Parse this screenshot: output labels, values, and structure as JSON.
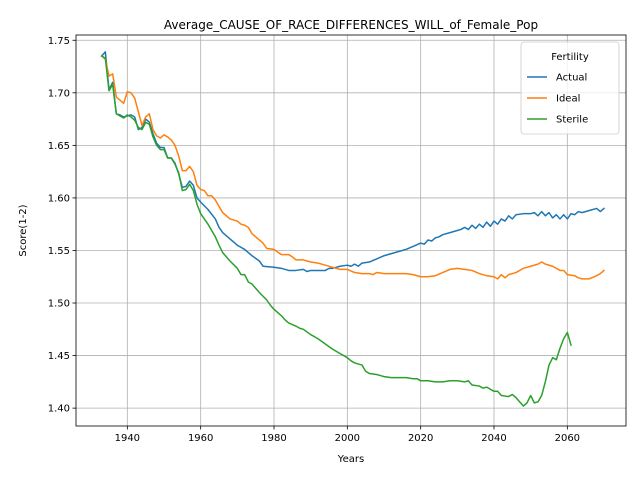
{
  "chart_data": {
    "type": "line",
    "title": "Average_CAUSE_OF_RACE_DIFFERENCES_WILL_of_Female_Pop",
    "xlabel": "Years",
    "ylabel": "Score(1-2)",
    "xlim": [
      1926,
      2076
    ],
    "ylim": [
      1.383,
      1.755
    ],
    "xticks": [
      1940,
      1960,
      1980,
      2000,
      2020,
      2040,
      2060
    ],
    "yticks": [
      1.4,
      1.45,
      1.5,
      1.55,
      1.6,
      1.65,
      1.7,
      1.75
    ],
    "xtick_labels": [
      "1940",
      "1960",
      "1980",
      "2000",
      "2020",
      "2040",
      "2060"
    ],
    "ytick_labels": [
      "1.40",
      "1.45",
      "1.50",
      "1.55",
      "1.60",
      "1.65",
      "1.70",
      "1.75"
    ],
    "grid": true,
    "legend": {
      "title": "Fertility",
      "placement": "upper right"
    },
    "series": [
      {
        "name": "Actual",
        "color": "#1f77b4",
        "points": [
          [
            1933,
            1.735
          ],
          [
            1934,
            1.739
          ],
          [
            1935,
            1.703
          ],
          [
            1936,
            1.71
          ],
          [
            1937,
            1.68
          ],
          [
            1938,
            1.679
          ],
          [
            1939,
            1.677
          ],
          [
            1940,
            1.678
          ],
          [
            1941,
            1.679
          ],
          [
            1942,
            1.677
          ],
          [
            1943,
            1.665
          ],
          [
            1944,
            1.667
          ],
          [
            1945,
            1.675
          ],
          [
            1946,
            1.672
          ],
          [
            1947,
            1.661
          ],
          [
            1948,
            1.652
          ],
          [
            1949,
            1.648
          ],
          [
            1950,
            1.648
          ],
          [
            1951,
            1.638
          ],
          [
            1952,
            1.638
          ],
          [
            1953,
            1.633
          ],
          [
            1954,
            1.623
          ],
          [
            1955,
            1.61
          ],
          [
            1956,
            1.611
          ],
          [
            1957,
            1.616
          ],
          [
            1958,
            1.612
          ],
          [
            1959,
            1.6
          ],
          [
            1960,
            1.596
          ],
          [
            1962,
            1.589
          ],
          [
            1964,
            1.58
          ],
          [
            1965,
            1.572
          ],
          [
            1966,
            1.567
          ],
          [
            1968,
            1.561
          ],
          [
            1970,
            1.555
          ],
          [
            1972,
            1.551
          ],
          [
            1974,
            1.545
          ],
          [
            1976,
            1.54
          ],
          [
            1977,
            1.535
          ],
          [
            1980,
            1.534
          ],
          [
            1982,
            1.533
          ],
          [
            1984,
            1.531
          ],
          [
            1986,
            1.531
          ],
          [
            1988,
            1.532
          ],
          [
            1989,
            1.53
          ],
          [
            1990,
            1.531
          ],
          [
            1992,
            1.531
          ],
          [
            1994,
            1.531
          ],
          [
            1995,
            1.533
          ],
          [
            1996,
            1.533
          ],
          [
            1998,
            1.535
          ],
          [
            2000,
            1.536
          ],
          [
            2001,
            1.535
          ],
          [
            2002,
            1.537
          ],
          [
            2003,
            1.535
          ],
          [
            2004,
            1.538
          ],
          [
            2006,
            1.539
          ],
          [
            2008,
            1.542
          ],
          [
            2010,
            1.545
          ],
          [
            2012,
            1.547
          ],
          [
            2014,
            1.549
          ],
          [
            2016,
            1.551
          ],
          [
            2018,
            1.554
          ],
          [
            2020,
            1.557
          ],
          [
            2021,
            1.556
          ],
          [
            2022,
            1.56
          ],
          [
            2023,
            1.559
          ],
          [
            2024,
            1.562
          ],
          [
            2025,
            1.563
          ],
          [
            2026,
            1.565
          ],
          [
            2028,
            1.567
          ],
          [
            2030,
            1.569
          ],
          [
            2031,
            1.57
          ],
          [
            2032,
            1.572
          ],
          [
            2033,
            1.57
          ],
          [
            2034,
            1.574
          ],
          [
            2035,
            1.571
          ],
          [
            2036,
            1.575
          ],
          [
            2037,
            1.572
          ],
          [
            2038,
            1.577
          ],
          [
            2039,
            1.573
          ],
          [
            2040,
            1.578
          ],
          [
            2041,
            1.575
          ],
          [
            2042,
            1.58
          ],
          [
            2043,
            1.578
          ],
          [
            2044,
            1.583
          ],
          [
            2045,
            1.58
          ],
          [
            2046,
            1.584
          ],
          [
            2048,
            1.585
          ],
          [
            2050,
            1.585
          ],
          [
            2051,
            1.586
          ],
          [
            2052,
            1.583
          ],
          [
            2053,
            1.587
          ],
          [
            2054,
            1.583
          ],
          [
            2055,
            1.586
          ],
          [
            2056,
            1.581
          ],
          [
            2057,
            1.584
          ],
          [
            2058,
            1.58
          ],
          [
            2059,
            1.584
          ],
          [
            2060,
            1.58
          ],
          [
            2061,
            1.585
          ],
          [
            2062,
            1.584
          ],
          [
            2063,
            1.587
          ],
          [
            2064,
            1.586
          ],
          [
            2066,
            1.588
          ],
          [
            2068,
            1.59
          ],
          [
            2069,
            1.587
          ],
          [
            2070,
            1.59
          ]
        ]
      },
      {
        "name": "Ideal",
        "color": "#ff7f0e",
        "points": [
          [
            1933,
            1.735
          ],
          [
            1934,
            1.732
          ],
          [
            1935,
            1.716
          ],
          [
            1936,
            1.718
          ],
          [
            1937,
            1.696
          ],
          [
            1938,
            1.693
          ],
          [
            1939,
            1.69
          ],
          [
            1940,
            1.701
          ],
          [
            1941,
            1.7
          ],
          [
            1942,
            1.695
          ],
          [
            1943,
            1.682
          ],
          [
            1944,
            1.669
          ],
          [
            1945,
            1.677
          ],
          [
            1946,
            1.68
          ],
          [
            1947,
            1.665
          ],
          [
            1948,
            1.659
          ],
          [
            1949,
            1.657
          ],
          [
            1950,
            1.66
          ],
          [
            1951,
            1.658
          ],
          [
            1952,
            1.655
          ],
          [
            1953,
            1.65
          ],
          [
            1954,
            1.64
          ],
          [
            1955,
            1.626
          ],
          [
            1956,
            1.626
          ],
          [
            1957,
            1.63
          ],
          [
            1958,
            1.625
          ],
          [
            1959,
            1.612
          ],
          [
            1960,
            1.608
          ],
          [
            1961,
            1.607
          ],
          [
            1962,
            1.602
          ],
          [
            1963,
            1.602
          ],
          [
            1964,
            1.598
          ],
          [
            1965,
            1.592
          ],
          [
            1966,
            1.586
          ],
          [
            1968,
            1.58
          ],
          [
            1970,
            1.578
          ],
          [
            1971,
            1.575
          ],
          [
            1972,
            1.574
          ],
          [
            1973,
            1.572
          ],
          [
            1974,
            1.566
          ],
          [
            1976,
            1.56
          ],
          [
            1977,
            1.557
          ],
          [
            1978,
            1.552
          ],
          [
            1980,
            1.551
          ],
          [
            1982,
            1.546
          ],
          [
            1984,
            1.546
          ],
          [
            1985,
            1.544
          ],
          [
            1986,
            1.541
          ],
          [
            1988,
            1.541
          ],
          [
            1990,
            1.539
          ],
          [
            1992,
            1.538
          ],
          [
            1994,
            1.536
          ],
          [
            1996,
            1.534
          ],
          [
            1998,
            1.532
          ],
          [
            2000,
            1.532
          ],
          [
            2002,
            1.529
          ],
          [
            2004,
            1.528
          ],
          [
            2006,
            1.528
          ],
          [
            2007,
            1.527
          ],
          [
            2008,
            1.529
          ],
          [
            2010,
            1.528
          ],
          [
            2012,
            1.528
          ],
          [
            2014,
            1.528
          ],
          [
            2016,
            1.528
          ],
          [
            2018,
            1.527
          ],
          [
            2020,
            1.525
          ],
          [
            2022,
            1.525
          ],
          [
            2024,
            1.526
          ],
          [
            2026,
            1.529
          ],
          [
            2028,
            1.532
          ],
          [
            2030,
            1.533
          ],
          [
            2032,
            1.532
          ],
          [
            2034,
            1.531
          ],
          [
            2036,
            1.528
          ],
          [
            2038,
            1.526
          ],
          [
            2040,
            1.525
          ],
          [
            2041,
            1.523
          ],
          [
            2042,
            1.527
          ],
          [
            2043,
            1.524
          ],
          [
            2044,
            1.527
          ],
          [
            2046,
            1.529
          ],
          [
            2048,
            1.533
          ],
          [
            2050,
            1.535
          ],
          [
            2052,
            1.537
          ],
          [
            2053,
            1.539
          ],
          [
            2054,
            1.537
          ],
          [
            2056,
            1.535
          ],
          [
            2058,
            1.531
          ],
          [
            2059,
            1.531
          ],
          [
            2060,
            1.527
          ],
          [
            2062,
            1.526
          ],
          [
            2063,
            1.524
          ],
          [
            2064,
            1.523
          ],
          [
            2066,
            1.523
          ],
          [
            2068,
            1.526
          ],
          [
            2069,
            1.528
          ],
          [
            2070,
            1.531
          ]
        ]
      },
      {
        "name": "Sterile",
        "color": "#2ca02c",
        "points": [
          [
            1933,
            1.735
          ],
          [
            1934,
            1.733
          ],
          [
            1935,
            1.702
          ],
          [
            1936,
            1.708
          ],
          [
            1937,
            1.68
          ],
          [
            1938,
            1.678
          ],
          [
            1939,
            1.676
          ],
          [
            1940,
            1.679
          ],
          [
            1941,
            1.677
          ],
          [
            1942,
            1.674
          ],
          [
            1943,
            1.667
          ],
          [
            1944,
            1.665
          ],
          [
            1945,
            1.672
          ],
          [
            1946,
            1.67
          ],
          [
            1947,
            1.658
          ],
          [
            1948,
            1.65
          ],
          [
            1949,
            1.646
          ],
          [
            1950,
            1.646
          ],
          [
            1951,
            1.638
          ],
          [
            1952,
            1.638
          ],
          [
            1953,
            1.632
          ],
          [
            1954,
            1.624
          ],
          [
            1955,
            1.607
          ],
          [
            1956,
            1.608
          ],
          [
            1957,
            1.613
          ],
          [
            1958,
            1.607
          ],
          [
            1959,
            1.594
          ],
          [
            1960,
            1.585
          ],
          [
            1962,
            1.575
          ],
          [
            1964,
            1.563
          ],
          [
            1965,
            1.555
          ],
          [
            1966,
            1.548
          ],
          [
            1968,
            1.54
          ],
          [
            1970,
            1.533
          ],
          [
            1971,
            1.527
          ],
          [
            1972,
            1.527
          ],
          [
            1973,
            1.52
          ],
          [
            1974,
            1.518
          ],
          [
            1976,
            1.51
          ],
          [
            1978,
            1.503
          ],
          [
            1979,
            1.498
          ],
          [
            1980,
            1.494
          ],
          [
            1982,
            1.488
          ],
          [
            1983,
            1.484
          ],
          [
            1984,
            1.481
          ],
          [
            1986,
            1.478
          ],
          [
            1987,
            1.476
          ],
          [
            1988,
            1.475
          ],
          [
            1990,
            1.47
          ],
          [
            1992,
            1.466
          ],
          [
            1994,
            1.461
          ],
          [
            1996,
            1.456
          ],
          [
            1998,
            1.452
          ],
          [
            2000,
            1.448
          ],
          [
            2001,
            1.445
          ],
          [
            2002,
            1.443
          ],
          [
            2004,
            1.441
          ],
          [
            2005,
            1.435
          ],
          [
            2006,
            1.433
          ],
          [
            2008,
            1.432
          ],
          [
            2010,
            1.43
          ],
          [
            2012,
            1.429
          ],
          [
            2014,
            1.429
          ],
          [
            2016,
            1.429
          ],
          [
            2018,
            1.428
          ],
          [
            2019,
            1.428
          ],
          [
            2020,
            1.426
          ],
          [
            2022,
            1.426
          ],
          [
            2024,
            1.425
          ],
          [
            2026,
            1.425
          ],
          [
            2028,
            1.426
          ],
          [
            2030,
            1.426
          ],
          [
            2032,
            1.425
          ],
          [
            2033,
            1.426
          ],
          [
            2034,
            1.422
          ],
          [
            2036,
            1.421
          ],
          [
            2037,
            1.419
          ],
          [
            2038,
            1.42
          ],
          [
            2040,
            1.416
          ],
          [
            2041,
            1.416
          ],
          [
            2042,
            1.412
          ],
          [
            2044,
            1.411
          ],
          [
            2045,
            1.413
          ],
          [
            2046,
            1.41
          ],
          [
            2047,
            1.406
          ],
          [
            2048,
            1.402
          ],
          [
            2049,
            1.405
          ],
          [
            2050,
            1.412
          ],
          [
            2051,
            1.405
          ],
          [
            2052,
            1.406
          ],
          [
            2053,
            1.412
          ],
          [
            2054,
            1.425
          ],
          [
            2055,
            1.441
          ],
          [
            2056,
            1.448
          ],
          [
            2057,
            1.446
          ],
          [
            2058,
            1.457
          ],
          [
            2059,
            1.466
          ],
          [
            2060,
            1.472
          ],
          [
            2061,
            1.46
          ]
        ]
      }
    ]
  }
}
